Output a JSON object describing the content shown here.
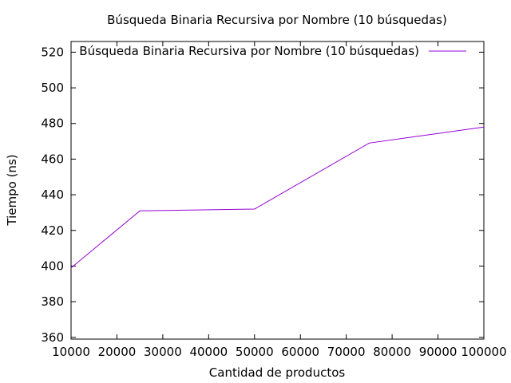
{
  "chart_data": {
    "type": "line",
    "title": "Búsqueda Binaria Recursiva por Nombre (10 búsquedas)",
    "xlabel": "Cantidad de productos",
    "ylabel": "Tiempo (ns)",
    "xlim": [
      10000,
      100000
    ],
    "ylim": [
      359,
      526
    ],
    "xticks": [
      10000,
      20000,
      30000,
      40000,
      50000,
      60000,
      70000,
      80000,
      90000,
      100000
    ],
    "yticks": [
      360,
      380,
      400,
      420,
      440,
      460,
      480,
      500,
      520
    ],
    "grid": false,
    "legend": {
      "position": "top-right"
    },
    "series": [
      {
        "name": "Búsqueda Binaria Recursiva por Nombre (10 búsquedas)",
        "color": "#9400d3",
        "x": [
          10000,
          25000,
          50000,
          75000,
          100000
        ],
        "y": [
          399,
          431,
          432,
          469,
          478
        ]
      }
    ]
  }
}
